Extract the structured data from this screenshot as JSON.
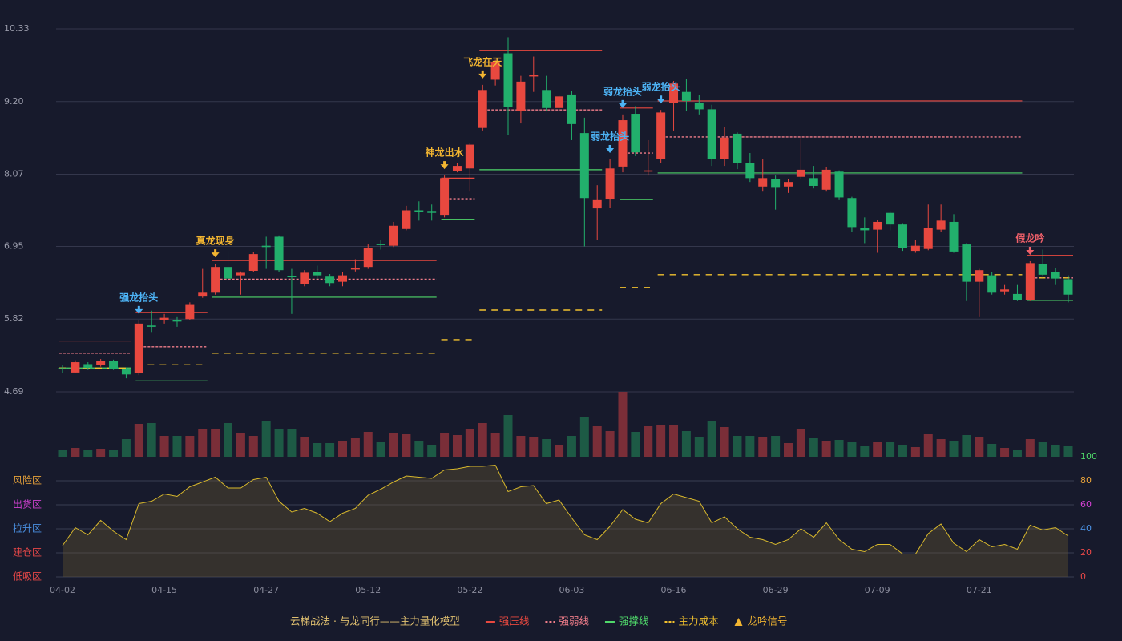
{
  "chart_data": {
    "type": "candlestick",
    "categories": [
      "04-02",
      null,
      null,
      null,
      null,
      null,
      null,
      null,
      "04-15",
      null,
      null,
      null,
      null,
      null,
      null,
      null,
      "04-27",
      null,
      null,
      null,
      null,
      null,
      null,
      null,
      "05-12",
      null,
      null,
      null,
      null,
      null,
      null,
      null,
      "05-22",
      null,
      null,
      null,
      null,
      null,
      null,
      null,
      "06-03",
      null,
      null,
      null,
      null,
      null,
      null,
      null,
      "06-16",
      null,
      null,
      null,
      null,
      null,
      null,
      null,
      "06-29",
      null,
      null,
      null,
      null,
      null,
      null,
      null,
      "07-09",
      null,
      null,
      null,
      null,
      null,
      null,
      null,
      "07-21",
      null,
      null,
      null,
      null,
      null,
      null,
      null
    ],
    "open": [
      5.06,
      4.99,
      5.12,
      5.11,
      5.17,
      5.04,
      4.98,
      5.72,
      5.8,
      5.8,
      5.82,
      6.17,
      6.23,
      6.63,
      6.5,
      6.57,
      6.96,
      7.1,
      6.49,
      6.36,
      6.55,
      6.48,
      6.4,
      6.59,
      6.63,
      6.99,
      6.96,
      7.22,
      7.51,
      7.5,
      7.44,
      8.12,
      8.16,
      8.79,
      9.54,
      9.95,
      9.06,
      9.59,
      9.38,
      9.1,
      9.31,
      8.71,
      7.54,
      7.69,
      8.19,
      9.01,
      8.11,
      8.31,
      9.18,
      9.35,
      9.18,
      9.08,
      8.31,
      8.7,
      8.24,
      7.88,
      8.0,
      7.88,
      8.03,
      8.01,
      7.83,
      8.11,
      7.7,
      7.23,
      7.21,
      7.47,
      7.29,
      6.88,
      6.91,
      7.21,
      7.33,
      6.98,
      6.4,
      6.5,
      6.25,
      6.21,
      6.12,
      6.68,
      6.55,
      6.44
    ],
    "high": [
      5.1,
      5.18,
      5.15,
      5.2,
      5.19,
      5.07,
      5.8,
      5.95,
      5.9,
      5.85,
      6.08,
      6.6,
      6.68,
      6.88,
      6.56,
      6.86,
      7.1,
      7.12,
      6.6,
      6.58,
      6.65,
      6.52,
      6.55,
      6.75,
      6.98,
      7.05,
      7.33,
      7.58,
      7.65,
      7.6,
      8.05,
      8.24,
      8.56,
      9.46,
      9.85,
      10.2,
      9.6,
      9.9,
      9.6,
      9.3,
      9.36,
      8.95,
      7.9,
      8.3,
      9.0,
      9.13,
      8.6,
      9.07,
      9.52,
      9.55,
      9.3,
      9.15,
      8.8,
      8.72,
      8.4,
      8.3,
      8.05,
      8.0,
      8.65,
      8.2,
      8.18,
      8.13,
      7.72,
      7.4,
      7.36,
      7.5,
      7.31,
      7.05,
      7.6,
      7.6,
      7.45,
      7.0,
      6.6,
      6.55,
      6.35,
      6.35,
      6.72,
      6.9,
      6.62,
      6.5
    ],
    "low": [
      4.98,
      4.98,
      5.03,
      5.08,
      5.03,
      4.9,
      4.95,
      5.62,
      5.75,
      5.7,
      5.8,
      6.15,
      6.2,
      6.4,
      6.2,
      6.55,
      6.6,
      6.55,
      5.9,
      6.33,
      6.45,
      6.33,
      6.33,
      6.56,
      6.6,
      6.9,
      6.94,
      7.2,
      7.35,
      7.35,
      7.4,
      8.1,
      7.8,
      8.75,
      9.45,
      8.68,
      8.86,
      9.35,
      9.05,
      9.05,
      8.6,
      6.95,
      7.05,
      7.55,
      8.1,
      8.35,
      8.05,
      8.25,
      8.75,
      9.05,
      9.0,
      8.2,
      8.2,
      8.15,
      7.95,
      7.8,
      7.52,
      7.78,
      8.0,
      7.85,
      7.8,
      7.68,
      7.18,
      7.0,
      6.85,
      7.2,
      6.88,
      6.85,
      6.89,
      7.18,
      6.85,
      6.1,
      5.85,
      6.2,
      6.2,
      6.1,
      6.1,
      6.48,
      6.35,
      6.08
    ],
    "close": [
      5.05,
      5.15,
      5.06,
      5.17,
      5.05,
      4.96,
      5.75,
      5.7,
      5.84,
      5.79,
      6.04,
      6.23,
      6.63,
      6.45,
      6.54,
      6.83,
      6.94,
      6.58,
      6.47,
      6.54,
      6.5,
      6.38,
      6.5,
      6.62,
      6.92,
      6.97,
      7.27,
      7.51,
      7.5,
      7.47,
      8.01,
      8.2,
      8.53,
      9.38,
      9.81,
      9.11,
      9.51,
      9.61,
      9.1,
      9.28,
      8.85,
      7.7,
      7.68,
      8.16,
      8.91,
      8.41,
      8.13,
      9.03,
      9.48,
      9.21,
      9.08,
      8.31,
      8.64,
      8.25,
      8.01,
      8.01,
      7.86,
      7.95,
      8.14,
      7.89,
      8.14,
      7.71,
      7.25,
      7.2,
      7.33,
      7.29,
      6.92,
      6.96,
      7.23,
      7.35,
      6.87,
      6.4,
      6.58,
      6.23,
      6.28,
      6.12,
      6.69,
      6.51,
      6.45,
      6.2
    ],
    "up_color": "#e8483f",
    "down_color": "#22b06c",
    "ylim": [
      4.69,
      10.33
    ],
    "yticks": [
      4.69,
      5.82,
      6.95,
      8.07,
      {
        "value": 9.2,
        "label": "9.20"
      },
      10.33
    ],
    "grid": true,
    "series": [
      {
        "name": "强压线",
        "color": "#e8483f",
        "dash": false,
        "segments": [
          {
            "start": 0,
            "end": 5,
            "value": 5.48
          },
          {
            "start": 6,
            "end": 11,
            "value": 5.92
          },
          {
            "start": 12,
            "end": 29,
            "value": 6.73
          },
          {
            "start": 30,
            "end": 32,
            "value": 8.01
          },
          {
            "start": 33,
            "end": 42,
            "value": 9.99
          },
          {
            "start": 44,
            "end": 46,
            "value": 9.1
          },
          {
            "start": 47,
            "end": 75,
            "value": 9.21
          },
          {
            "start": 76,
            "end": 79,
            "value": 6.81
          }
        ]
      },
      {
        "name": "强弱线",
        "color": "#f07d8a",
        "dash": true,
        "segments": [
          {
            "start": 0,
            "end": 5,
            "value": 5.29
          },
          {
            "start": 6,
            "end": 11,
            "value": 5.39
          },
          {
            "start": 12,
            "end": 29,
            "value": 6.44
          },
          {
            "start": 30,
            "end": 32,
            "value": 7.69
          },
          {
            "start": 33,
            "end": 42,
            "value": 9.07
          },
          {
            "start": 44,
            "end": 46,
            "value": 8.4
          },
          {
            "start": 47,
            "end": 75,
            "value": 8.65
          },
          {
            "start": 76,
            "end": 79,
            "value": 6.46
          }
        ]
      },
      {
        "name": "强撑线",
        "color": "#4fd86a",
        "dash": false,
        "segments": [
          {
            "start": 0,
            "end": 5,
            "value": 5.06
          },
          {
            "start": 6,
            "end": 11,
            "value": 4.86
          },
          {
            "start": 12,
            "end": 29,
            "value": 6.16
          },
          {
            "start": 30,
            "end": 32,
            "value": 7.37
          },
          {
            "start": 33,
            "end": 42,
            "value": 8.14
          },
          {
            "start": 44,
            "end": 46,
            "value": 7.68
          },
          {
            "start": 47,
            "end": 75,
            "value": 8.09
          },
          {
            "start": 76,
            "end": 79,
            "value": 6.11
          }
        ]
      },
      {
        "name": "主力成本",
        "color": "#f2c12e",
        "dash": true,
        "segments": [
          {
            "start": 0,
            "end": 5,
            "value": 5.06
          },
          {
            "start": 6,
            "end": 11,
            "value": 5.11
          },
          {
            "start": 12,
            "end": 29,
            "value": 5.29
          },
          {
            "start": 30,
            "end": 32,
            "value": 5.5
          },
          {
            "start": 33,
            "end": 42,
            "value": 5.96
          },
          {
            "start": 44,
            "end": 46,
            "value": 6.31
          },
          {
            "start": 47,
            "end": 75,
            "value": 6.51
          },
          {
            "start": 76,
            "end": 79,
            "value": 6.46
          }
        ]
      }
    ],
    "signals": [
      {
        "label": "强龙抬头",
        "index": 6,
        "color": "#4db3f5"
      },
      {
        "label": "真龙现身",
        "index": 12,
        "color": "#f2b531"
      },
      {
        "label": "神龙出水",
        "index": 30,
        "color": "#f2b531"
      },
      {
        "label": "飞龙在天",
        "index": 33,
        "color": "#f2b531"
      },
      {
        "label": "弱龙抬头",
        "index": 43,
        "color": "#4db3f5"
      },
      {
        "label": "弱龙抬头",
        "index": 44,
        "color": "#4db3f5"
      },
      {
        "label": "弱龙抬头",
        "index": 47,
        "color": "#4db3f5"
      },
      {
        "label": "假龙吟",
        "index": 76,
        "color": "#f0606a"
      }
    ],
    "signal_legend": {
      "name": "龙吟信号",
      "color": "#f2b531"
    },
    "legend_title": "云梯战法 · 与龙同行——主力量化模型",
    "volume": {
      "type": "bar",
      "up_color": "#7a2e38",
      "down_color": "#1d5a45",
      "values": [
        8,
        11,
        8,
        10,
        8,
        22,
        41,
        42,
        26,
        26,
        26,
        35,
        34,
        42,
        30,
        26,
        45,
        34,
        34,
        24,
        17,
        17,
        20,
        23,
        31,
        18,
        29,
        28,
        20,
        14,
        29,
        27,
        34,
        42,
        29,
        52,
        26,
        24,
        22,
        14,
        26,
        50,
        38,
        32,
        81,
        31,
        38,
        40,
        39,
        32,
        25,
        45,
        37,
        26,
        26,
        24,
        26,
        17,
        34,
        23,
        19,
        21,
        18,
        13,
        18,
        18,
        15,
        12,
        28,
        22,
        19,
        27,
        25,
        16,
        11,
        9,
        22,
        18,
        14,
        13
      ]
    },
    "indicator": {
      "type": "line",
      "color": "#d9b92c",
      "values": [
        26,
        41,
        35,
        47,
        38,
        31,
        61,
        63,
        69,
        67,
        75,
        79,
        83,
        74,
        74,
        81,
        83,
        63,
        54,
        57,
        53,
        46,
        53,
        57,
        68,
        73,
        79,
        84,
        83,
        82,
        89,
        90,
        92,
        92,
        93,
        71,
        75,
        76,
        61,
        64,
        49,
        35,
        31,
        42,
        56,
        48,
        45,
        61,
        69,
        66,
        63,
        45,
        50,
        40,
        33,
        31,
        27,
        31,
        40,
        33,
        45,
        31,
        23,
        21,
        27,
        27,
        19,
        19,
        36,
        44,
        28,
        21,
        31,
        25,
        27,
        23,
        43,
        39,
        41,
        34
      ],
      "ylim": [
        0,
        100
      ],
      "yticks": [
        {
          "value": 0,
          "color": "#e84848"
        },
        {
          "value": 20,
          "color": "#e84848"
        },
        {
          "value": 40,
          "color": "#4a90e2"
        },
        {
          "value": 60,
          "color": "#d040d0"
        },
        {
          "value": 80,
          "color": "#e8a33a"
        },
        {
          "value": 100,
          "color": "#4fd86a"
        }
      ],
      "zones": [
        {
          "value": 80,
          "label": "风险区",
          "color": "#e8a33a"
        },
        {
          "value": 60,
          "label": "出货区",
          "color": "#d040d0"
        },
        {
          "value": 40,
          "label": "拉升区",
          "color": "#4a90e2"
        },
        {
          "value": 20,
          "label": "建仓区",
          "color": "#e84848"
        },
        {
          "value": 0,
          "label": "低吸区",
          "color": "#e84848"
        }
      ]
    }
  }
}
